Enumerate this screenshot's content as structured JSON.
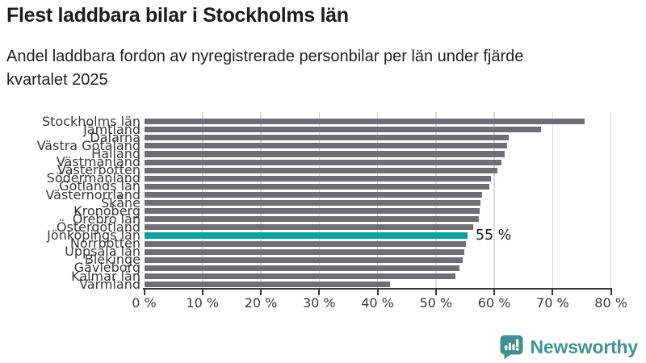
{
  "header": {
    "title": "Flest laddbara bilar i Stockholms län",
    "subtitle": "Andel laddbara fordon av nyregistrerade personbilar per län under fjärde kvartalet 2025"
  },
  "chart_data": {
    "type": "bar",
    "orientation": "horizontal",
    "title": "Flest laddbara bilar i Stockholms län",
    "subtitle": "Andel laddbara fordon av nyregistrerade personbilar per län under fjärde kvartalet 2025",
    "unit": "%",
    "xlim": [
      0,
      80
    ],
    "grid": true,
    "tick_labels": [
      "0 %",
      "10 %",
      "20 %",
      "30 %",
      "40 %",
      "50 %",
      "60 %",
      "70 %",
      "80 %"
    ],
    "categories": [
      "Stockholms län",
      "Jämtland",
      "Dalarna",
      "Västra Götaland",
      "Halland",
      "Västmanland",
      "Västerbotten",
      "Södermanland",
      "Gotlands län",
      "Västernorrland",
      "Skåne",
      "Kronoberg",
      "Örebro län",
      "Östergötland",
      "Jönköpings län",
      "Norrbotten",
      "Uppsala län",
      "Blekinge",
      "Gävleborg",
      "Kalmar län",
      "Värmland"
    ],
    "values": [
      75.5,
      68.0,
      62.5,
      62.2,
      61.8,
      61.2,
      60.5,
      59.5,
      59.2,
      57.9,
      57.6,
      57.5,
      57.4,
      56.4,
      55.4,
      55.1,
      54.8,
      54.6,
      54.1,
      53.4,
      42.2
    ],
    "highlight": {
      "index": 14,
      "category": "Jönköpings län",
      "label": "55 %"
    },
    "bar_color": "#6f6e73",
    "highlight_color": "#0aa099"
  },
  "footer": {
    "brand": "Newsworthy",
    "brand_color": "#43948e",
    "logo_icon": "bar-chart-speech-bubble-icon"
  }
}
